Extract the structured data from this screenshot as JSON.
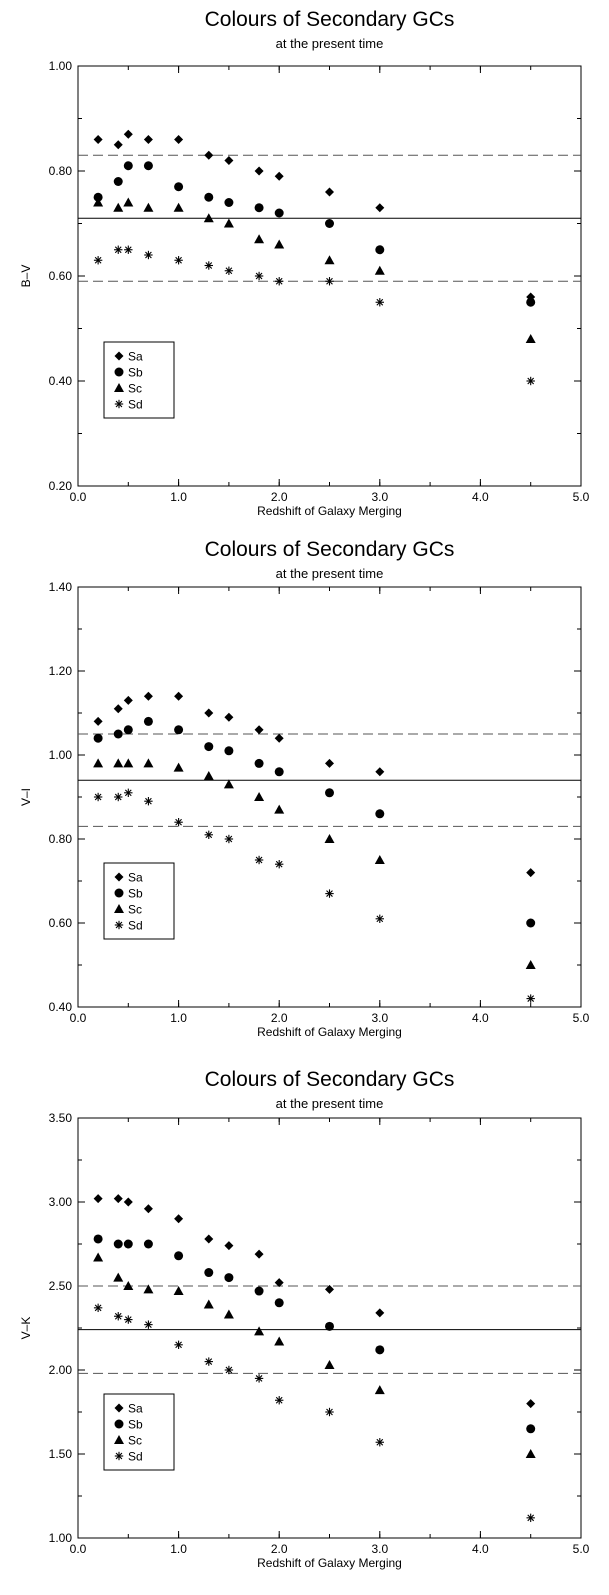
{
  "chart_data": [
    {
      "type": "scatter",
      "title": "Colours of Secondary GCs",
      "subtitle": "at the present time",
      "xlabel": "Redshift of Galaxy  Merging",
      "ylabel": "B–V",
      "xlim": [
        0.0,
        5.0
      ],
      "ylim": [
        0.2,
        1.0
      ],
      "xticks": [
        0.0,
        1.0,
        2.0,
        3.0,
        4.0,
        5.0
      ],
      "xtick_labels": [
        "0.0",
        "1.0",
        "2.0",
        "3.0",
        "4.0",
        "5.0"
      ],
      "yticks": [
        0.2,
        0.4,
        0.6,
        0.8,
        1.0
      ],
      "ytick_labels": [
        "0.20",
        "0.40",
        "0.60",
        "0.80",
        "1.00"
      ],
      "x": [
        0.2,
        0.4,
        0.5,
        0.7,
        1.0,
        1.3,
        1.5,
        1.8,
        2.0,
        2.5,
        3.0,
        4.5
      ],
      "series": [
        {
          "name": "Sa",
          "marker": "diamond",
          "values": [
            0.86,
            0.85,
            0.87,
            0.86,
            0.86,
            0.83,
            0.82,
            0.8,
            0.79,
            0.76,
            0.73,
            0.56
          ]
        },
        {
          "name": "Sb",
          "marker": "circle",
          "values": [
            0.75,
            0.78,
            0.81,
            0.81,
            0.77,
            0.75,
            0.74,
            0.73,
            0.72,
            0.7,
            0.65,
            0.55
          ]
        },
        {
          "name": "Sc",
          "marker": "triangle",
          "values": [
            0.74,
            0.73,
            0.74,
            0.73,
            0.73,
            0.71,
            0.7,
            0.67,
            0.66,
            0.63,
            0.61,
            0.48
          ]
        },
        {
          "name": "Sd",
          "marker": "asterisk",
          "values": [
            0.63,
            0.65,
            0.65,
            0.64,
            0.63,
            0.62,
            0.61,
            0.6,
            0.59,
            0.59,
            0.55,
            0.4
          ]
        }
      ],
      "reference_lines": [
        {
          "style": "solid",
          "y": 0.71
        },
        {
          "style": "dashed",
          "y": 0.83
        },
        {
          "style": "dashed",
          "y": 0.59
        }
      ],
      "legend_position": "lower-left"
    },
    {
      "type": "scatter",
      "title": "Colours of Secondary GCs",
      "subtitle": "at the present time",
      "xlabel": "Redshift of Galaxy  Merging",
      "ylabel": "V–I",
      "xlim": [
        0.0,
        5.0
      ],
      "ylim": [
        0.4,
        1.4
      ],
      "xticks": [
        0.0,
        1.0,
        2.0,
        3.0,
        4.0,
        5.0
      ],
      "xtick_labels": [
        "0.0",
        "1.0",
        "2.0",
        "3.0",
        "4.0",
        "5.0"
      ],
      "yticks": [
        0.4,
        0.6,
        0.8,
        1.0,
        1.2,
        1.4
      ],
      "ytick_labels": [
        "0.40",
        "0.60",
        "0.80",
        "1.00",
        "1.20",
        "1.40"
      ],
      "x": [
        0.2,
        0.4,
        0.5,
        0.7,
        1.0,
        1.3,
        1.5,
        1.8,
        2.0,
        2.5,
        3.0,
        4.5
      ],
      "series": [
        {
          "name": "Sa",
          "marker": "diamond",
          "values": [
            1.08,
            1.11,
            1.13,
            1.14,
            1.14,
            1.1,
            1.09,
            1.06,
            1.04,
            0.98,
            0.96,
            0.72
          ]
        },
        {
          "name": "Sb",
          "marker": "circle",
          "values": [
            1.04,
            1.05,
            1.06,
            1.08,
            1.06,
            1.02,
            1.01,
            0.98,
            0.96,
            0.91,
            0.86,
            0.6
          ]
        },
        {
          "name": "Sc",
          "marker": "triangle",
          "values": [
            0.98,
            0.98,
            0.98,
            0.98,
            0.97,
            0.95,
            0.93,
            0.9,
            0.87,
            0.8,
            0.75,
            0.5
          ]
        },
        {
          "name": "Sd",
          "marker": "asterisk",
          "values": [
            0.9,
            0.9,
            0.91,
            0.89,
            0.84,
            0.81,
            0.8,
            0.75,
            0.74,
            0.67,
            0.61,
            0.42
          ]
        }
      ],
      "reference_lines": [
        {
          "style": "solid",
          "y": 0.94
        },
        {
          "style": "dashed",
          "y": 1.05
        },
        {
          "style": "dashed",
          "y": 0.83
        }
      ],
      "legend_position": "lower-left"
    },
    {
      "type": "scatter",
      "title": "Colours of Secondary GCs",
      "subtitle": "at the present time",
      "xlabel": "Redshift of Galaxy  Merging",
      "ylabel": "V–K",
      "xlim": [
        0.0,
        5.0
      ],
      "ylim": [
        1.0,
        3.5
      ],
      "xticks": [
        0.0,
        1.0,
        2.0,
        3.0,
        4.0,
        5.0
      ],
      "xtick_labels": [
        "0.0",
        "1.0",
        "2.0",
        "3.0",
        "4.0",
        "5.0"
      ],
      "yticks": [
        1.0,
        1.5,
        2.0,
        2.5,
        3.0,
        3.5
      ],
      "ytick_labels": [
        "1.00",
        "1.50",
        "2.00",
        "2.50",
        "3.00",
        "3.50"
      ],
      "x": [
        0.2,
        0.4,
        0.5,
        0.7,
        1.0,
        1.3,
        1.5,
        1.8,
        2.0,
        2.5,
        3.0,
        4.5
      ],
      "series": [
        {
          "name": "Sa",
          "marker": "diamond",
          "values": [
            3.02,
            3.02,
            3.0,
            2.96,
            2.9,
            2.78,
            2.74,
            2.69,
            2.52,
            2.48,
            2.34,
            1.8
          ]
        },
        {
          "name": "Sb",
          "marker": "circle",
          "values": [
            2.78,
            2.75,
            2.75,
            2.75,
            2.68,
            2.58,
            2.55,
            2.47,
            2.4,
            2.26,
            2.12,
            1.65
          ]
        },
        {
          "name": "Sc",
          "marker": "triangle",
          "values": [
            2.67,
            2.55,
            2.5,
            2.48,
            2.47,
            2.39,
            2.33,
            2.23,
            2.17,
            2.03,
            1.88,
            1.5
          ]
        },
        {
          "name": "Sd",
          "marker": "asterisk",
          "values": [
            2.37,
            2.32,
            2.3,
            2.27,
            2.15,
            2.05,
            2.0,
            1.95,
            1.82,
            1.75,
            1.57,
            1.12
          ]
        }
      ],
      "reference_lines": [
        {
          "style": "solid",
          "y": 2.24
        },
        {
          "style": "dashed",
          "y": 2.5
        },
        {
          "style": "dashed",
          "y": 1.98
        }
      ],
      "legend_position": "lower-left"
    }
  ]
}
